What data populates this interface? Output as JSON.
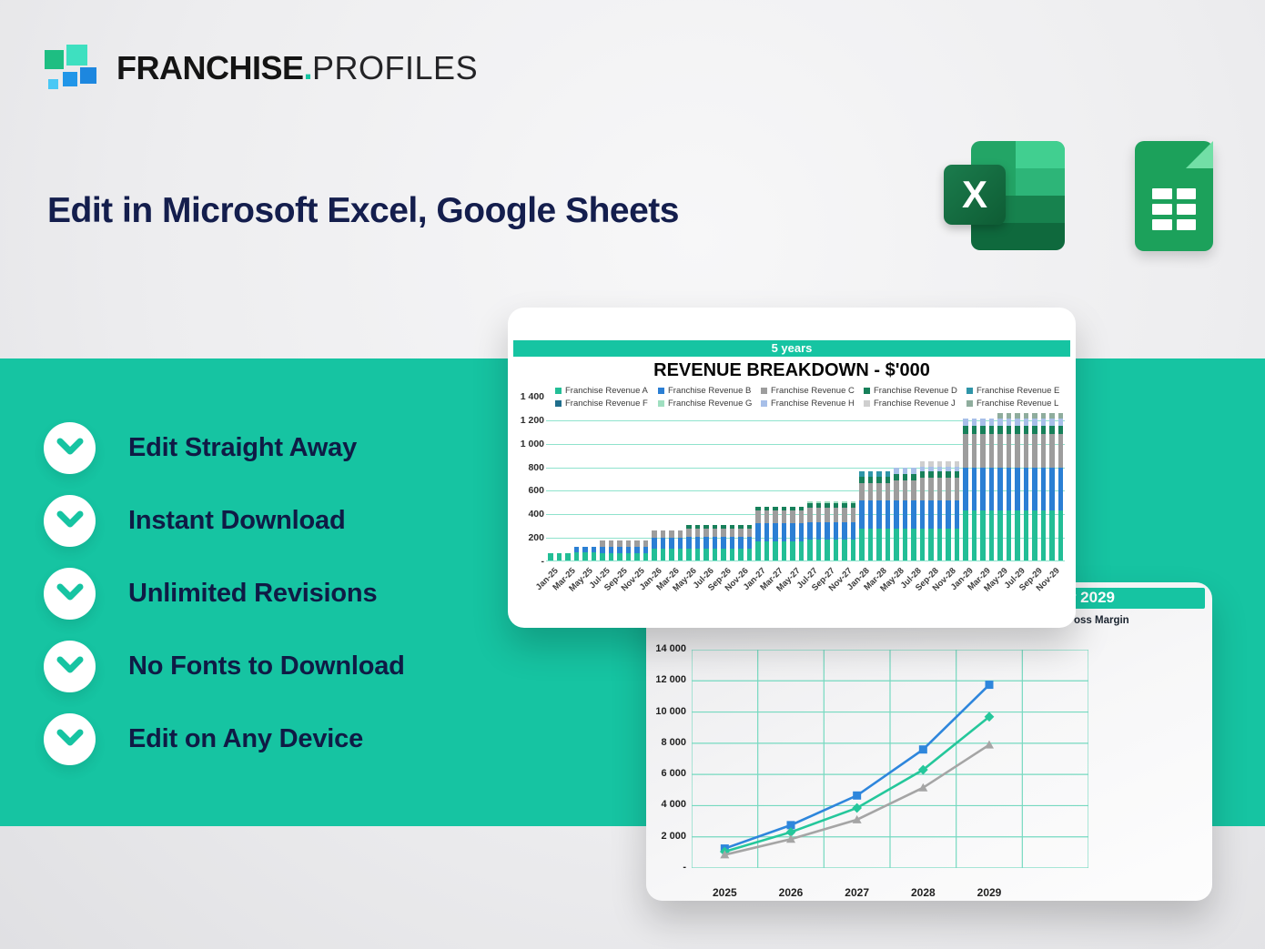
{
  "brand": {
    "bold": "FRANCHISE",
    "dot": ".",
    "light": "PROFILES"
  },
  "headline": "Edit in Microsoft Excel, Google Sheets",
  "excel_icon_letter": "X",
  "features": [
    "Edit Straight Away",
    "Instant Download",
    "Unlimited Revisions",
    "No Fonts to Download",
    "Edit on Any Device"
  ],
  "colors": {
    "band_teal": "#16c4a2",
    "navy_text": "#0f1b45",
    "grid_teal_1": "#8fe3cd",
    "grid_teal_2": "#76d9c0"
  },
  "chart_data": [
    {
      "type": "bar",
      "header": "5 years",
      "title": "REVENUE BREAKDOWN - $'000",
      "legend": [
        {
          "label": "Franchise Revenue A",
          "color": "#23be96"
        },
        {
          "label": "Franchise Revenue B",
          "color": "#2b7fd4"
        },
        {
          "label": "Franchise Revenue C",
          "color": "#9d9d9d"
        },
        {
          "label": "Franchise Revenue D",
          "color": "#17805a"
        },
        {
          "label": "Franchise Revenue E",
          "color": "#2f95a8"
        },
        {
          "label": "Franchise Revenue F",
          "color": "#1f6e8c"
        },
        {
          "label": "Franchise Revenue G",
          "color": "#9fdfc0"
        },
        {
          "label": "Franchise Revenue H",
          "color": "#a7bfe8"
        },
        {
          "label": "Franchise Revenue J",
          "color": "#cfcfcf"
        },
        {
          "label": "Franchise Revenue L",
          "color": "#8fad9d"
        }
      ],
      "ylim": [
        0,
        1400
      ],
      "y_ticks": [
        {
          "value": 1400,
          "label": "1 400"
        },
        {
          "value": 1200,
          "label": "1 200"
        },
        {
          "value": 1000,
          "label": "1 000"
        },
        {
          "value": 800,
          "label": "800"
        },
        {
          "value": 600,
          "label": "600"
        },
        {
          "value": 400,
          "label": "400"
        },
        {
          "value": 200,
          "label": "200"
        },
        {
          "value": 0,
          "label": "-"
        }
      ],
      "x_tick_labels": [
        "Jan-25",
        "Mar-25",
        "May-25",
        "Jul-25",
        "Sep-25",
        "Nov-25",
        "Jan-26",
        "Mar-26",
        "May-26",
        "Jul-26",
        "Sep-26",
        "Nov-26",
        "Jan-27",
        "Mar-27",
        "May-27",
        "Jul-27",
        "Sep-27",
        "Nov-27",
        "Jan-28",
        "Mar-28",
        "May-28",
        "Jul-28",
        "Sep-28",
        "Nov-28",
        "Jan-29",
        "Mar-29",
        "May-29",
        "Jul-29",
        "Sep-29",
        "Nov-29"
      ],
      "stack_keys": [
        "A",
        "B",
        "C",
        "D",
        "E",
        "G",
        "H",
        "J",
        "L"
      ],
      "stack_colors": {
        "A": "#23be96",
        "B": "#2b7fd4",
        "C": "#9d9d9d",
        "D": "#17805a",
        "E": "#2f95a8",
        "G": "#9fdfc0",
        "H": "#a7bfe8",
        "J": "#cfcfcf",
        "L": "#8fad9d"
      },
      "bars": [
        [
          60,
          0,
          0,
          0,
          0,
          0,
          0,
          0,
          0
        ],
        [
          60,
          0,
          0,
          0,
          0,
          0,
          0,
          0,
          0
        ],
        [
          60,
          0,
          0,
          0,
          0,
          0,
          0,
          0,
          0
        ],
        [
          70,
          45,
          0,
          0,
          0,
          0,
          0,
          0,
          0
        ],
        [
          70,
          45,
          0,
          0,
          0,
          0,
          0,
          0,
          0
        ],
        [
          70,
          45,
          0,
          0,
          0,
          0,
          0,
          0,
          0
        ],
        [
          65,
          50,
          55,
          0,
          0,
          0,
          0,
          0,
          0
        ],
        [
          65,
          50,
          55,
          0,
          0,
          0,
          0,
          0,
          0
        ],
        [
          65,
          50,
          55,
          0,
          0,
          0,
          0,
          0,
          0
        ],
        [
          65,
          50,
          55,
          0,
          0,
          0,
          0,
          0,
          0
        ],
        [
          65,
          50,
          55,
          0,
          0,
          0,
          0,
          0,
          0
        ],
        [
          65,
          50,
          55,
          0,
          0,
          0,
          0,
          0,
          0
        ],
        [
          100,
          95,
          60,
          0,
          0,
          0,
          0,
          0,
          0
        ],
        [
          100,
          95,
          60,
          0,
          0,
          0,
          0,
          0,
          0
        ],
        [
          100,
          95,
          60,
          0,
          0,
          0,
          0,
          0,
          0
        ],
        [
          100,
          95,
          60,
          0,
          0,
          0,
          0,
          0,
          0
        ],
        [
          100,
          100,
          70,
          30,
          0,
          0,
          0,
          0,
          0
        ],
        [
          100,
          100,
          70,
          30,
          0,
          0,
          0,
          0,
          0
        ],
        [
          100,
          100,
          70,
          30,
          0,
          0,
          0,
          0,
          0
        ],
        [
          100,
          100,
          70,
          30,
          0,
          0,
          0,
          0,
          0
        ],
        [
          100,
          100,
          70,
          30,
          0,
          0,
          0,
          0,
          0
        ],
        [
          100,
          100,
          70,
          30,
          0,
          0,
          0,
          0,
          0
        ],
        [
          100,
          100,
          70,
          30,
          0,
          0,
          0,
          0,
          0
        ],
        [
          100,
          100,
          70,
          30,
          0,
          0,
          0,
          0,
          0
        ],
        [
          165,
          150,
          110,
          30,
          0,
          0,
          0,
          0,
          0
        ],
        [
          165,
          150,
          110,
          30,
          0,
          0,
          0,
          0,
          0
        ],
        [
          165,
          150,
          110,
          30,
          0,
          0,
          0,
          0,
          0
        ],
        [
          165,
          150,
          110,
          30,
          0,
          0,
          0,
          0,
          0
        ],
        [
          165,
          150,
          110,
          30,
          0,
          0,
          0,
          0,
          0
        ],
        [
          165,
          150,
          110,
          30,
          0,
          0,
          0,
          0,
          0
        ],
        [
          175,
          150,
          125,
          35,
          0,
          20,
          0,
          0,
          0
        ],
        [
          175,
          150,
          125,
          35,
          0,
          20,
          0,
          0,
          0
        ],
        [
          175,
          150,
          125,
          35,
          0,
          20,
          0,
          0,
          0
        ],
        [
          175,
          150,
          125,
          35,
          0,
          20,
          0,
          0,
          0
        ],
        [
          175,
          150,
          125,
          35,
          0,
          20,
          0,
          0,
          0
        ],
        [
          175,
          150,
          125,
          35,
          0,
          20,
          0,
          0,
          0
        ],
        [
          270,
          240,
          145,
          55,
          45,
          0,
          0,
          0,
          0
        ],
        [
          270,
          240,
          145,
          55,
          45,
          0,
          0,
          0,
          0
        ],
        [
          270,
          240,
          145,
          55,
          45,
          0,
          0,
          0,
          0
        ],
        [
          270,
          240,
          145,
          55,
          45,
          0,
          0,
          0,
          0
        ],
        [
          270,
          240,
          170,
          55,
          0,
          0,
          55,
          0,
          0
        ],
        [
          270,
          240,
          170,
          55,
          0,
          0,
          55,
          0,
          0
        ],
        [
          270,
          240,
          170,
          55,
          0,
          0,
          55,
          0,
          0
        ],
        [
          270,
          240,
          195,
          55,
          0,
          0,
          35,
          50,
          0
        ],
        [
          270,
          240,
          195,
          55,
          0,
          0,
          35,
          50,
          0
        ],
        [
          270,
          240,
          195,
          55,
          0,
          0,
          35,
          50,
          0
        ],
        [
          270,
          240,
          195,
          55,
          0,
          0,
          35,
          50,
          0
        ],
        [
          270,
          240,
          195,
          55,
          0,
          0,
          35,
          50,
          0
        ],
        [
          425,
          365,
          285,
          70,
          0,
          0,
          60,
          0,
          0
        ],
        [
          425,
          365,
          285,
          70,
          0,
          0,
          60,
          0,
          0
        ],
        [
          425,
          365,
          285,
          70,
          0,
          0,
          60,
          0,
          0
        ],
        [
          425,
          365,
          285,
          70,
          0,
          0,
          60,
          0,
          0
        ],
        [
          425,
          365,
          285,
          70,
          0,
          0,
          60,
          0,
          45
        ],
        [
          425,
          365,
          285,
          70,
          0,
          0,
          60,
          0,
          45
        ],
        [
          425,
          365,
          285,
          70,
          0,
          0,
          60,
          0,
          45
        ],
        [
          425,
          365,
          285,
          70,
          0,
          0,
          60,
          0,
          45
        ],
        [
          425,
          365,
          285,
          70,
          0,
          0,
          60,
          0,
          45
        ],
        [
          425,
          365,
          285,
          70,
          0,
          0,
          60,
          0,
          45
        ],
        [
          425,
          365,
          285,
          70,
          0,
          0,
          60,
          0,
          45
        ],
        [
          425,
          365,
          285,
          70,
          0,
          0,
          60,
          0,
          45
        ]
      ]
    },
    {
      "type": "line",
      "header_visible_fragment": "ber 2029",
      "legend_visible_fragment": "oss Margin",
      "ylim": [
        0,
        14000
      ],
      "y_ticks": [
        {
          "value": 14000,
          "label": "14 000"
        },
        {
          "value": 12000,
          "label": "12 000"
        },
        {
          "value": 10000,
          "label": "10 000"
        },
        {
          "value": 8000,
          "label": "8 000"
        },
        {
          "value": 6000,
          "label": "6 000"
        },
        {
          "value": 4000,
          "label": "4 000"
        },
        {
          "value": 2000,
          "label": "2 000"
        },
        {
          "value": 0,
          "label": "-"
        }
      ],
      "categories": [
        "2025",
        "2026",
        "2027",
        "2028",
        "2029"
      ],
      "series": [
        {
          "name": "blue-series",
          "color": "#2e86dc",
          "marker": "square",
          "values": [
            1250,
            2750,
            4650,
            7600,
            11750
          ]
        },
        {
          "name": "teal-series",
          "color": "#25c79b",
          "marker": "diamond",
          "values": [
            1050,
            2300,
            3850,
            6300,
            9700
          ]
        },
        {
          "name": "gray-series",
          "color": "#a5a5a5",
          "marker": "triangle",
          "values": [
            850,
            1850,
            3100,
            5150,
            7900
          ]
        }
      ]
    }
  ]
}
